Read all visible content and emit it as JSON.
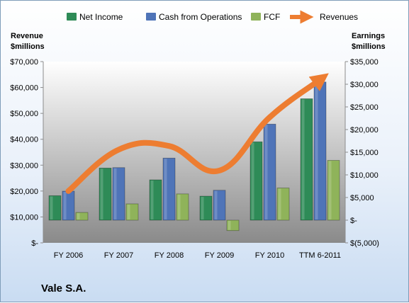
{
  "company_name": "Vale S.A.",
  "colors": {
    "net_income": "#2e8b57",
    "cash_from_operations": "#4f74b8",
    "fcf": "#8fb35a",
    "revenues": "#ed7d31",
    "plot_top": "#ffffff",
    "plot_bottom": "#8a8a8a"
  },
  "chart_data": {
    "type": "bar",
    "categories": [
      "FY 2006",
      "FY 2007",
      "FY 2008",
      "FY 2009",
      "FY 2010",
      "TTM 6-2011"
    ],
    "series": [
      {
        "name": "Net Income",
        "axis": "right",
        "type": "bar",
        "values": [
          5400,
          11500,
          8900,
          5300,
          17300,
          26800
        ]
      },
      {
        "name": "Cash from Operations",
        "axis": "right",
        "type": "bar",
        "values": [
          6400,
          11600,
          13700,
          6600,
          21200,
          30500
        ]
      },
      {
        "name": "FCF",
        "axis": "right",
        "type": "bar",
        "values": [
          1700,
          3600,
          5800,
          -2300,
          7100,
          13200
        ]
      },
      {
        "name": "Revenues",
        "axis": "left",
        "type": "line",
        "values": [
          20000,
          36000,
          37400,
          27900,
          48500,
          63000
        ]
      }
    ],
    "left_axis": {
      "title": "Revenue $millions",
      "min": 0,
      "max": 70000,
      "ticks": [
        "$70,000",
        "$60,000",
        "$50,000",
        "$40,000",
        "$30,000",
        "$20,000",
        "$10,000",
        "$-"
      ]
    },
    "right_axis": {
      "title": "Earnings $millions",
      "min": -5000,
      "max": 35000,
      "ticks": [
        "$35,000",
        "$30,000",
        "$25,000",
        "$20,000",
        "$15,000",
        "$10,000",
        "$5,000",
        "$-",
        "$(5,000)"
      ]
    },
    "legend": {
      "position": "top",
      "entries": [
        "Net Income",
        "Cash from Operations",
        "FCF",
        "Revenues"
      ]
    },
    "grid": false
  }
}
